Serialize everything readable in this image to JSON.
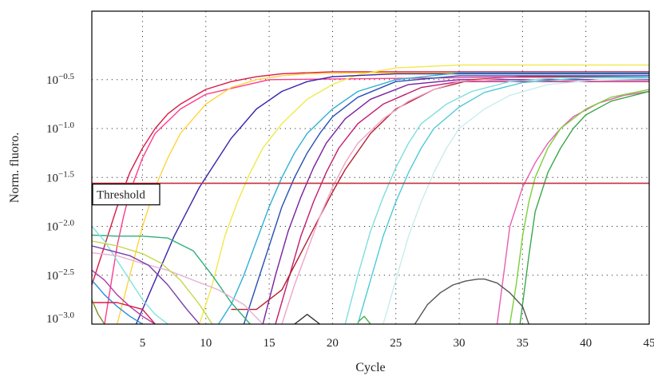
{
  "chart_data": {
    "type": "line",
    "xlabel": "Cycle",
    "ylabel": "Norm. fluoro.",
    "xlim": [
      1,
      45
    ],
    "ylim": [
      -3.0,
      0.2
    ],
    "y_scale": "log10",
    "grid": true,
    "x_ticks": [
      5,
      10,
      15,
      20,
      25,
      30,
      35,
      40,
      45
    ],
    "y_ticks": [
      {
        "exp": -0.5,
        "base": "10",
        "sup": "−0.5"
      },
      {
        "exp": -1.0,
        "base": "10",
        "sup": "−1.0"
      },
      {
        "exp": -1.5,
        "base": "10",
        "sup": "−1.5"
      },
      {
        "exp": -2.0,
        "base": "10",
        "sup": "−2.0"
      },
      {
        "exp": -2.5,
        "base": "10",
        "sup": "−2.5"
      },
      {
        "exp": -3.0,
        "base": "10",
        "sup": "−3.0"
      }
    ],
    "threshold": {
      "label": "Threshold",
      "value_exp": -1.56,
      "color": "#c0303a"
    },
    "series": [
      {
        "color": "#d81b45",
        "x": [
          1,
          2,
          3,
          4,
          5,
          6,
          7,
          8,
          10,
          12,
          14,
          16,
          20,
          30,
          45
        ],
        "y": [
          -2.6,
          -2.2,
          -1.8,
          -1.45,
          -1.2,
          -1.0,
          -0.85,
          -0.75,
          -0.6,
          -0.52,
          -0.47,
          -0.44,
          -0.42,
          -0.42,
          -0.42
        ]
      },
      {
        "color": "#ff3b8d",
        "x": [
          2,
          2.5,
          3,
          3.5,
          4,
          5,
          6,
          8,
          10,
          15,
          45
        ],
        "y": [
          -3.0,
          -2.6,
          -2.2,
          -1.9,
          -1.65,
          -1.3,
          -1.05,
          -0.8,
          -0.65,
          -0.5,
          -0.46
        ]
      },
      {
        "color": "#ffd43b",
        "x": [
          3,
          4,
          5,
          6,
          7,
          8,
          9,
          10,
          12,
          14,
          16,
          18,
          22,
          30,
          45
        ],
        "y": [
          -3.0,
          -2.5,
          -2.0,
          -1.6,
          -1.3,
          -1.05,
          -0.9,
          -0.75,
          -0.58,
          -0.5,
          -0.46,
          -0.44,
          -0.43,
          -0.43,
          -0.43
        ]
      },
      {
        "color": "#f2e84a",
        "x": [
          9.5,
          10.5,
          11.5,
          12.5,
          13.5,
          14.5,
          16,
          18,
          20,
          22,
          25,
          30,
          45
        ],
        "y": [
          -3.0,
          -2.6,
          -2.1,
          -1.75,
          -1.45,
          -1.2,
          -0.95,
          -0.7,
          -0.55,
          -0.45,
          -0.38,
          -0.35,
          -0.35
        ]
      },
      {
        "color": "#3b22a8",
        "x": [
          4.5,
          5.5,
          6.5,
          7.5,
          8.5,
          9.5,
          10.5,
          12,
          14,
          16,
          18,
          20,
          25,
          30,
          45
        ],
        "y": [
          -3.0,
          -2.7,
          -2.4,
          -2.1,
          -1.85,
          -1.6,
          -1.4,
          -1.1,
          -0.8,
          -0.62,
          -0.52,
          -0.47,
          -0.44,
          -0.44,
          -0.44
        ]
      },
      {
        "color": "#2a4fb5",
        "x": [
          13,
          14,
          15,
          16,
          17,
          18,
          19,
          20,
          22,
          25,
          30,
          45
        ],
        "y": [
          -3.0,
          -2.6,
          -2.2,
          -1.8,
          -1.5,
          -1.25,
          -1.05,
          -0.88,
          -0.68,
          -0.52,
          -0.46,
          -0.46
        ]
      },
      {
        "color": "#7a1fa0",
        "x": [
          14.5,
          15.5,
          16.5,
          17.5,
          18.5,
          19.5,
          21,
          23,
          26,
          30,
          45
        ],
        "y": [
          -3.0,
          -2.5,
          -2.05,
          -1.7,
          -1.4,
          -1.15,
          -0.9,
          -0.7,
          -0.55,
          -0.5,
          -0.5
        ]
      },
      {
        "color": "#c21b6f",
        "x": [
          15.5,
          16.5,
          17.5,
          18.5,
          19.5,
          20.5,
          22,
          24,
          27,
          30,
          45
        ],
        "y": [
          -3.0,
          -2.55,
          -2.1,
          -1.75,
          -1.45,
          -1.2,
          -0.95,
          -0.75,
          -0.58,
          -0.52,
          -0.52
        ]
      },
      {
        "color": "#2fb0d6",
        "x": [
          11,
          12,
          13,
          14,
          15,
          16,
          17,
          18,
          20,
          22,
          25,
          30,
          45
        ],
        "y": [
          -3.0,
          -2.8,
          -2.5,
          -2.15,
          -1.8,
          -1.5,
          -1.25,
          -1.05,
          -0.8,
          -0.62,
          -0.5,
          -0.43,
          -0.43
        ]
      },
      {
        "color": "#b2202f",
        "x": [
          12,
          14,
          16,
          17,
          18,
          19,
          20,
          21,
          23,
          25,
          28,
          31,
          35,
          45
        ],
        "y": [
          -2.85,
          -2.85,
          -2.65,
          -2.4,
          -2.15,
          -1.9,
          -1.65,
          -1.42,
          -1.05,
          -0.8,
          -0.6,
          -0.5,
          -0.47,
          -0.47
        ]
      },
      {
        "color": "#f0a3c8",
        "x": [
          16,
          17,
          18,
          19,
          20,
          21,
          22,
          24,
          26,
          28,
          30,
          34,
          45
        ],
        "y": [
          -3.0,
          -2.6,
          -2.25,
          -1.9,
          -1.6,
          -1.35,
          -1.15,
          -0.9,
          -0.72,
          -0.6,
          -0.52,
          -0.48,
          -0.48
        ]
      },
      {
        "color": "#7fdede",
        "x": [
          21,
          22,
          23,
          24,
          25,
          26,
          27,
          29,
          31,
          34,
          38,
          45
        ],
        "y": [
          -3.0,
          -2.5,
          -2.05,
          -1.7,
          -1.4,
          -1.15,
          -0.95,
          -0.75,
          -0.62,
          -0.52,
          -0.48,
          -0.47
        ]
      },
      {
        "color": "#4fc9d9",
        "x": [
          22,
          23,
          24,
          25,
          26,
          27,
          28,
          30,
          32,
          35,
          40,
          45
        ],
        "y": [
          -3.0,
          -2.55,
          -2.1,
          -1.75,
          -1.45,
          -1.2,
          -1.0,
          -0.78,
          -0.63,
          -0.53,
          -0.48,
          -0.48
        ]
      },
      {
        "color": "#c9ecec",
        "x": [
          24,
          25,
          26,
          27,
          28,
          29,
          30,
          32,
          34,
          37,
          41,
          45
        ],
        "y": [
          -3.0,
          -2.55,
          -2.1,
          -1.75,
          -1.45,
          -1.2,
          -1.0,
          -0.8,
          -0.66,
          -0.55,
          -0.5,
          -0.49
        ]
      },
      {
        "color": "#e85fb0",
        "x": [
          33,
          33.5,
          34,
          35,
          36,
          37,
          38,
          39,
          41,
          43,
          45
        ],
        "y": [
          -3.0,
          -2.5,
          -2.0,
          -1.6,
          -1.35,
          -1.15,
          -1.0,
          -0.88,
          -0.74,
          -0.66,
          -0.62
        ]
      },
      {
        "color": "#7ad13a",
        "x": [
          34,
          34.5,
          35,
          35.5,
          36,
          37,
          38,
          40,
          42,
          45
        ],
        "y": [
          -3.0,
          -2.6,
          -2.1,
          -1.75,
          -1.5,
          -1.2,
          -1.0,
          -0.8,
          -0.68,
          -0.6
        ]
      },
      {
        "color": "#3aa84a",
        "x": [
          34.8,
          35.5,
          36,
          37,
          38,
          39,
          40,
          42,
          45
        ],
        "y": [
          -3.0,
          -2.3,
          -1.85,
          -1.45,
          -1.2,
          -1.0,
          -0.86,
          -0.72,
          -0.62
        ]
      },
      {
        "color": "#2fb07a",
        "x": [
          1,
          3,
          5,
          7,
          9,
          10.5,
          12,
          13.5
        ],
        "y": [
          -2.09,
          -2.1,
          -2.1,
          -2.12,
          -2.25,
          -2.5,
          -2.78,
          -3.0
        ]
      },
      {
        "color": "#7fe3e0",
        "x": [
          1,
          2,
          3,
          4,
          5,
          6,
          7
        ],
        "y": [
          -2.0,
          -2.15,
          -2.35,
          -2.55,
          -2.75,
          -2.9,
          -3.0
        ]
      },
      {
        "color": "#e6b0d5",
        "x": [
          1,
          3,
          5,
          7,
          9,
          11,
          13,
          14.5
        ],
        "y": [
          -2.27,
          -2.3,
          -2.38,
          -2.45,
          -2.55,
          -2.65,
          -2.8,
          -3.0
        ]
      },
      {
        "color": "#b03aa8",
        "x": [
          1,
          2,
          3,
          4,
          5,
          6
        ],
        "y": [
          -2.45,
          -2.55,
          -2.7,
          -2.82,
          -2.92,
          -3.0
        ]
      },
      {
        "color": "#7a3ba8",
        "x": [
          1,
          2.5,
          4,
          5.5,
          7,
          8.5,
          9.5
        ],
        "y": [
          -2.2,
          -2.25,
          -2.3,
          -2.4,
          -2.6,
          -2.85,
          -3.0
        ]
      },
      {
        "color": "#2a8fd6",
        "x": [
          1,
          2,
          3,
          4,
          5
        ],
        "y": [
          -2.55,
          -2.7,
          -2.82,
          -2.92,
          -3.0
        ]
      },
      {
        "color": "#c3d84a",
        "x": [
          1,
          3,
          5,
          6.5,
          8,
          9.5,
          10.5
        ],
        "y": [
          -2.15,
          -2.2,
          -2.28,
          -2.38,
          -2.55,
          -2.8,
          -3.0
        ]
      },
      {
        "color": "#d81b45",
        "x": [
          1,
          3,
          5,
          6
        ],
        "y": [
          -2.78,
          -2.78,
          -2.85,
          -3.0
        ]
      },
      {
        "color": "#7b8f2a",
        "x": [
          1,
          1.5,
          2
        ],
        "y": [
          -2.75,
          -2.9,
          -3.0
        ]
      },
      {
        "color": "#555555",
        "x": [
          26.5,
          27.5,
          28.5,
          29.5,
          30.5,
          31.5,
          32,
          33,
          34,
          35,
          35.5
        ],
        "y": [
          -3.0,
          -2.8,
          -2.68,
          -2.6,
          -2.56,
          -2.54,
          -2.54,
          -2.58,
          -2.68,
          -2.82,
          -3.0
        ]
      },
      {
        "color": "#333333",
        "x": [
          17,
          17.5,
          18,
          18.5,
          19
        ],
        "y": [
          -3.0,
          -2.95,
          -2.9,
          -2.95,
          -3.0
        ]
      },
      {
        "color": "#4caf50",
        "x": [
          22,
          22.5,
          23
        ],
        "y": [
          -2.98,
          -2.92,
          -3.0
        ]
      }
    ]
  }
}
